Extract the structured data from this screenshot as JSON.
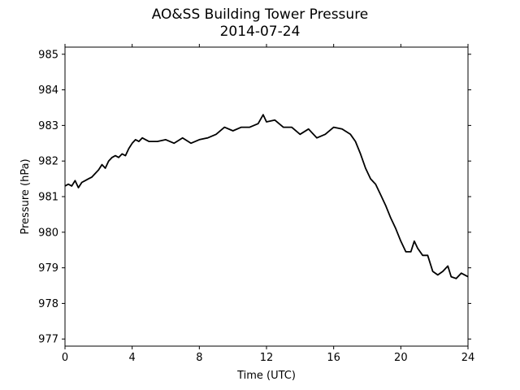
{
  "chart_data": {
    "type": "line",
    "title": "AO&SS Building Tower Pressure",
    "subtitle": "2014-07-24",
    "xlabel": "Time (UTC)",
    "ylabel": "Pressure (hPa)",
    "xlim": [
      0,
      24
    ],
    "ylim": [
      976.8,
      985.2
    ],
    "xticks": [
      0,
      4,
      8,
      12,
      16,
      20,
      24
    ],
    "yticks": [
      977,
      978,
      979,
      980,
      981,
      982,
      983,
      984,
      985
    ],
    "grid": false,
    "legend": "none",
    "line_color": "#000000",
    "series": [
      {
        "x": [
          0,
          0.2,
          0.4,
          0.6,
          0.8,
          1.0,
          1.2,
          1.4,
          1.6,
          1.8,
          2.0,
          2.2,
          2.4,
          2.6,
          2.8,
          3.0,
          3.2,
          3.4,
          3.6,
          3.8,
          4.0,
          4.2,
          4.4,
          4.6,
          4.8,
          5.0,
          5.5,
          6.0,
          6.5,
          7.0,
          7.5,
          8.0,
          8.5,
          9.0,
          9.5,
          10.0,
          10.5,
          11.0,
          11.5,
          11.8,
          12.0,
          12.5,
          13.0,
          13.5,
          14.0,
          14.5,
          15.0,
          15.5,
          16.0,
          16.5,
          17.0,
          17.3,
          17.6,
          17.9,
          18.2,
          18.5,
          18.8,
          19.1,
          19.4,
          19.7,
          20.0,
          20.3,
          20.6,
          20.8,
          21.0,
          21.3,
          21.6,
          21.9,
          22.2,
          22.5,
          22.8,
          23.0,
          23.3,
          23.6,
          24.0
        ],
        "y": [
          981.3,
          981.35,
          981.3,
          981.45,
          981.25,
          981.4,
          981.45,
          981.5,
          981.55,
          981.65,
          981.75,
          981.9,
          981.8,
          982.0,
          982.1,
          982.15,
          982.1,
          982.2,
          982.15,
          982.35,
          982.5,
          982.6,
          982.55,
          982.65,
          982.6,
          982.55,
          982.55,
          982.6,
          982.5,
          982.65,
          982.5,
          982.6,
          982.65,
          982.75,
          982.95,
          982.85,
          982.95,
          982.95,
          983.05,
          983.3,
          983.1,
          983.15,
          982.95,
          982.95,
          982.75,
          982.9,
          982.65,
          982.75,
          982.95,
          982.9,
          982.75,
          982.55,
          982.2,
          981.8,
          981.5,
          981.35,
          981.05,
          980.75,
          980.4,
          980.1,
          979.75,
          979.45,
          979.45,
          979.75,
          979.55,
          979.35,
          979.35,
          978.9,
          978.8,
          978.9,
          979.05,
          978.75,
          978.7,
          978.85,
          978.75
        ]
      }
    ]
  }
}
